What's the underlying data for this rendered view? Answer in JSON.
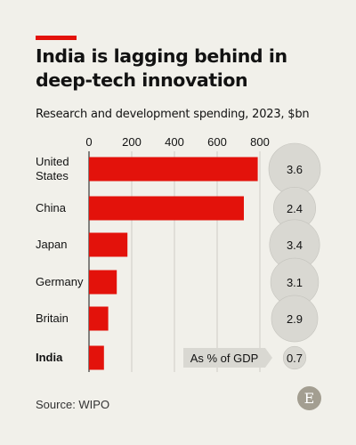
{
  "header": {
    "title": "India is lagging behind in deep-tech innovation",
    "subtitle": "Research and development spending, 2023, $bn"
  },
  "footer": {
    "source": "Source: WIPO",
    "logo_letter": "E"
  },
  "chart_data": {
    "type": "bar",
    "orientation": "horizontal",
    "title": "India is lagging behind in deep-tech innovation",
    "subtitle": "Research and development spending, 2023, $bn",
    "categories": [
      "United\nStates",
      "China",
      "Japan",
      "Germany",
      "Britain",
      "India"
    ],
    "values": [
      790,
      725,
      180,
      130,
      90,
      70
    ],
    "xlim": [
      0,
      800
    ],
    "xticks": [
      0,
      200,
      400,
      600,
      800
    ],
    "highlight_category": "India",
    "bar_color": "#e3120b",
    "grid": true,
    "gdp_share": {
      "label": "As % of GDP",
      "values": [
        "3.6",
        "2.4",
        "3.4",
        "3.1",
        "2.9",
        "0.7"
      ],
      "bubble_color": "#d9d8d2",
      "max": 3.6
    }
  }
}
